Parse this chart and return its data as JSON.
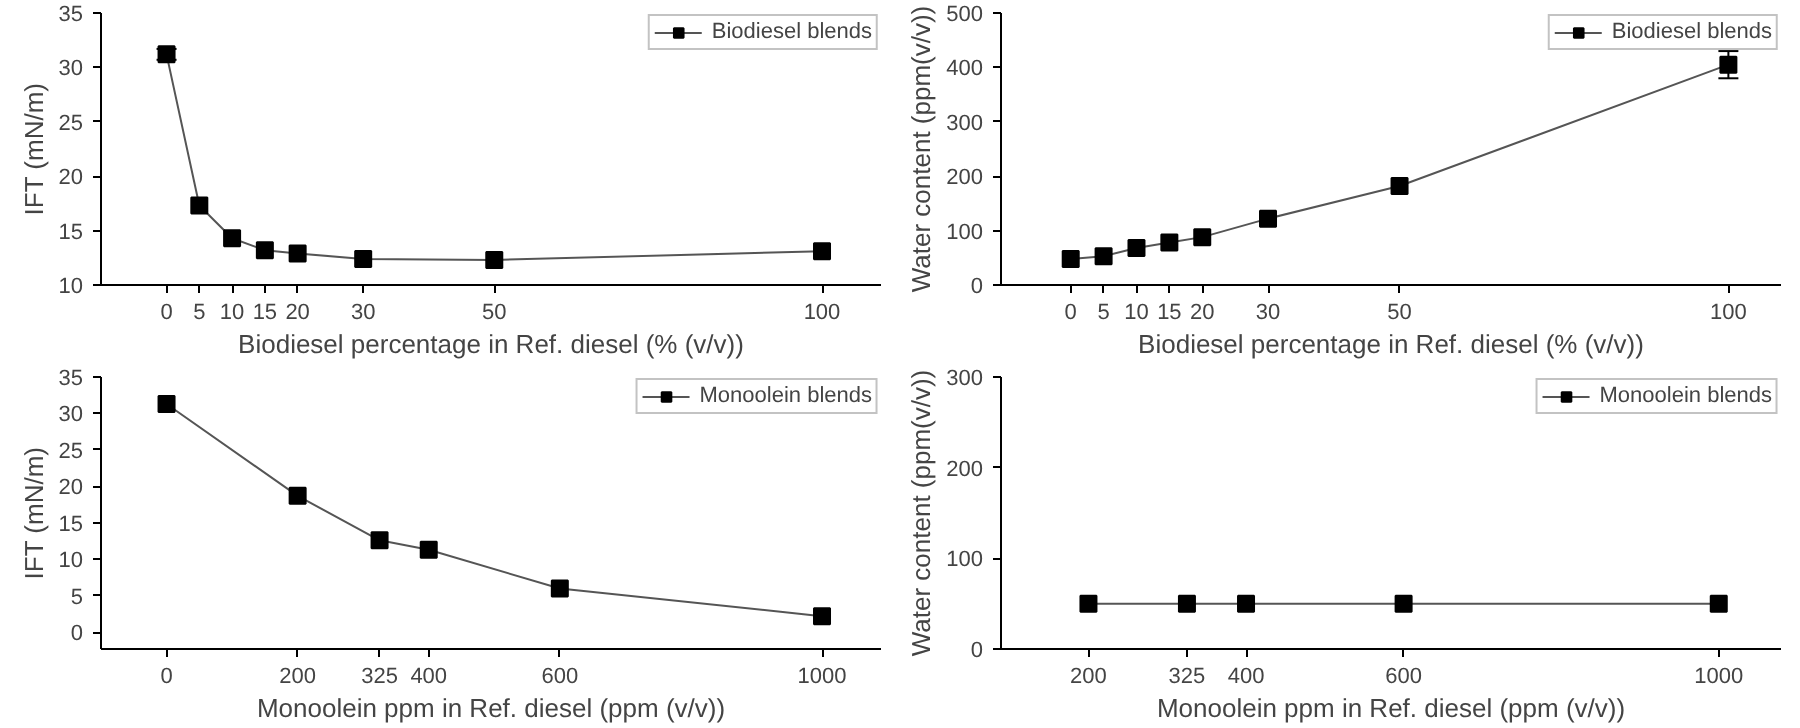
{
  "chart_data": [
    {
      "type": "line",
      "xlabel": "Biodiesel percentage in Ref. diesel (% (v/v))",
      "ylabel": "IFT (mN/m)",
      "x": [
        0,
        5,
        10,
        15,
        20,
        30,
        50,
        100
      ],
      "series": [
        {
          "name": "Biodiesel blends",
          "color": "#000000",
          "values": [
            31.2,
            17.3,
            14.3,
            13.2,
            12.9,
            12.4,
            12.3,
            13.1
          ],
          "errors": [
            0.5,
            null,
            null,
            null,
            null,
            null,
            null,
            null
          ]
        }
      ],
      "xlim": [
        -10,
        109
      ],
      "xticks": [
        0,
        5,
        10,
        15,
        20,
        30,
        50,
        100
      ],
      "ylim": [
        10,
        35
      ],
      "yticks": [
        10,
        15,
        20,
        25,
        30,
        35
      ],
      "marker": "square",
      "legend": "top right",
      "grid": false
    },
    {
      "type": "line",
      "xlabel": "Biodiesel percentage in Ref. diesel (% (v/v))",
      "ylabel": "Water content (ppm(v/v))",
      "x": [
        0,
        5,
        10,
        15,
        20,
        30,
        50,
        100
      ],
      "series": [
        {
          "name": "Biodiesel blends",
          "color": "#000000",
          "values": [
            48,
            53,
            68,
            78,
            88,
            122,
            182,
            405
          ],
          "errors": [
            null,
            null,
            null,
            null,
            null,
            null,
            null,
            25
          ]
        }
      ],
      "xlim": [
        -10.6,
        108
      ],
      "xticks": [
        0,
        5,
        10,
        15,
        20,
        30,
        50,
        100
      ],
      "ylim": [
        0,
        500
      ],
      "yticks": [
        0,
        100,
        200,
        300,
        400,
        500
      ],
      "marker": "square",
      "legend": "top right",
      "grid": false
    },
    {
      "type": "line",
      "xlabel": "Monoolein ppm in Ref. diesel (ppm (v/v))",
      "ylabel": "IFT (mN/m)",
      "x": [
        0,
        200,
        325,
        400,
        600,
        1000
      ],
      "series": [
        {
          "name": "Monoolein blends",
          "color": "#000000",
          "values": [
            31.3,
            18.7,
            12.6,
            11.3,
            6.0,
            2.2
          ]
        }
      ],
      "xlim": [
        -100,
        1090
      ],
      "xticks": [
        0,
        200,
        325,
        400,
        600,
        1000
      ],
      "ylim": [
        -2.3,
        35
      ],
      "yticks": [
        0,
        5,
        10,
        15,
        20,
        25,
        30,
        35
      ],
      "marker": "square",
      "legend": "top right",
      "grid": false
    },
    {
      "type": "line",
      "xlabel": "Monoolein ppm in Ref. diesel (ppm (v/v))",
      "ylabel": "Water content (ppm(v/v))",
      "x": [
        200,
        325,
        400,
        600,
        1000
      ],
      "series": [
        {
          "name": "Monoolein blends",
          "color": "#000000",
          "values": [
            50,
            50,
            50,
            50,
            50
          ]
        }
      ],
      "xlim": [
        89,
        1079
      ],
      "xticks": [
        200,
        325,
        400,
        600,
        1000
      ],
      "ylim": [
        0,
        300
      ],
      "yticks": [
        0,
        100,
        200,
        300
      ],
      "marker": "square",
      "legend": "top right",
      "grid": false
    }
  ]
}
